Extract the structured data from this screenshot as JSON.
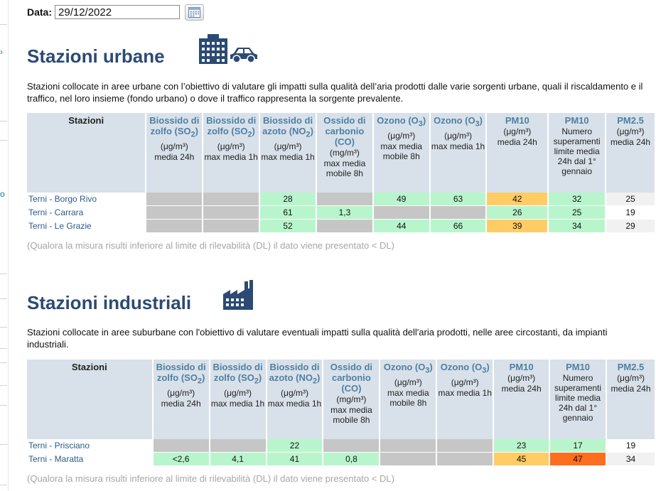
{
  "date": {
    "label": "Data:",
    "value": "29/12/2022"
  },
  "icons": {
    "calendar": "calendar-icon",
    "urban": [
      "building-icon",
      "car-icon"
    ],
    "industrial": "factory-icon"
  },
  "sidebar": {
    "fragment": "o"
  },
  "urban": {
    "title": "Stazioni urbane",
    "description": "Stazioni collocate in aree urbane con l’obiettivo di valutare gli impatti sulla qualità dell’aria prodotti dalle varie sorgenti urbane, quali il riscaldamento e il traffico, nel loro insieme (fondo urbano) o dove il traffico rappresenta la sorgente prevalente.",
    "columns": [
      {
        "name": "Stazioni",
        "sub": "",
        "unit": "",
        "detail": ""
      },
      {
        "name": "Biossido di zolfo (SO",
        "sub": "2",
        "close": ")",
        "unit": "(μg/m³)",
        "detail": "media 24h"
      },
      {
        "name": "Biossido di zolfo (SO",
        "sub": "2",
        "close": ")",
        "unit": "(μg/m³)",
        "detail": "max media 1h"
      },
      {
        "name": "Biossido di azoto (NO",
        "sub": "2",
        "close": ")",
        "unit": "(μg/m³)",
        "detail": "max media 1h"
      },
      {
        "name": "Ossido di carbonio (CO)",
        "sub": "",
        "close": "",
        "unit": "(mg/m³)",
        "detail": "max media mobile 8h"
      },
      {
        "name": "Ozono (O",
        "sub": "3",
        "close": ")",
        "unit": "(μg/m³)",
        "detail": "max media mobile 8h"
      },
      {
        "name": "Ozono (O",
        "sub": "3",
        "close": ")",
        "unit": "(μg/m³)",
        "detail": "max media 1h"
      },
      {
        "name": "PM10",
        "sub": "",
        "close": "",
        "unit": "(μg/m³)",
        "detail": "media 24h"
      },
      {
        "name": "PM10",
        "sub": "",
        "close": "",
        "unit": "",
        "detail": "Numero superamenti limite media 24h dal 1° gennaio"
      },
      {
        "name": "PM2.5",
        "sub": "",
        "close": "",
        "unit": "(μg/m³)",
        "detail": "media 24h"
      }
    ],
    "rows": [
      {
        "station": "Terni - Borgo Rivo",
        "cells": [
          {
            "v": "",
            "c": "grey"
          },
          {
            "v": "",
            "c": "grey"
          },
          {
            "v": "28",
            "c": "green"
          },
          {
            "v": "",
            "c": "grey"
          },
          {
            "v": "49",
            "c": "green"
          },
          {
            "v": "63",
            "c": "green"
          },
          {
            "v": "42",
            "c": "orange"
          },
          {
            "v": "32",
            "c": "green"
          },
          {
            "v": "25",
            "c": "light"
          }
        ]
      },
      {
        "station": "Terni - Carrara",
        "cells": [
          {
            "v": "",
            "c": "grey"
          },
          {
            "v": "",
            "c": "grey"
          },
          {
            "v": "61",
            "c": "green"
          },
          {
            "v": "1,3",
            "c": "green"
          },
          {
            "v": "",
            "c": "grey"
          },
          {
            "v": "",
            "c": "grey"
          },
          {
            "v": "26",
            "c": "green"
          },
          {
            "v": "25",
            "c": "green"
          },
          {
            "v": "19",
            "c": "white"
          }
        ]
      },
      {
        "station": "Terni - Le Grazie",
        "cells": [
          {
            "v": "",
            "c": "grey"
          },
          {
            "v": "",
            "c": "grey"
          },
          {
            "v": "52",
            "c": "green"
          },
          {
            "v": "",
            "c": "grey"
          },
          {
            "v": "44",
            "c": "green"
          },
          {
            "v": "66",
            "c": "green"
          },
          {
            "v": "39",
            "c": "orange"
          },
          {
            "v": "34",
            "c": "green"
          },
          {
            "v": "29",
            "c": "light"
          }
        ]
      }
    ],
    "note": "(Qualora la misura risulti inferiore al limite di rilevabilità (DL) il dato viene presentato < DL)"
  },
  "industrial": {
    "title": "Stazioni industriali",
    "description": "Stazioni collocate in aree suburbane con l'obiettivo di valutare eventuali impatti sulla qualità dell'aria prodotti, nelle aree circostanti, da impianti industriali.",
    "rows": [
      {
        "station": "Terni - Prisciano",
        "cells": [
          {
            "v": "",
            "c": "grey"
          },
          {
            "v": "",
            "c": "grey"
          },
          {
            "v": "22",
            "c": "green"
          },
          {
            "v": "",
            "c": "grey"
          },
          {
            "v": "",
            "c": "grey"
          },
          {
            "v": "",
            "c": "grey"
          },
          {
            "v": "23",
            "c": "green"
          },
          {
            "v": "17",
            "c": "green"
          },
          {
            "v": "19",
            "c": "white"
          }
        ]
      },
      {
        "station": "Terni - Maratta",
        "cells": [
          {
            "v": "<2,6",
            "c": "green"
          },
          {
            "v": "4,1",
            "c": "green"
          },
          {
            "v": "41",
            "c": "green"
          },
          {
            "v": "0,8",
            "c": "green"
          },
          {
            "v": "",
            "c": "grey"
          },
          {
            "v": "",
            "c": "grey"
          },
          {
            "v": "45",
            "c": "orange"
          },
          {
            "v": "47",
            "c": "red"
          },
          {
            "v": "34",
            "c": "light"
          }
        ]
      }
    ],
    "note": "(Qualora la misura risulti inferiore al limite di rilevabilità (DL) il dato viene presentato < DL)"
  },
  "colors": {
    "title": "#2c4a73",
    "header_bg": "#d8e1e9",
    "pollutant_label": "#4f7fa4",
    "station_link": "#2b5a8a",
    "green": "#b8f5cc",
    "orange": "#ffcc66",
    "red": "#ff6d1f",
    "grey": "#c6c6c6"
  }
}
